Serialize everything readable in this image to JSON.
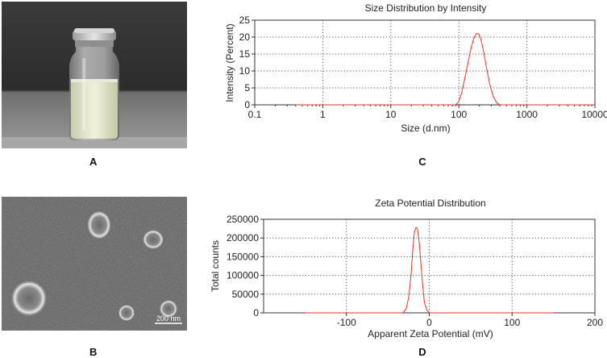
{
  "panels": {
    "a": "A",
    "b": "B",
    "c": "C",
    "d": "D"
  },
  "scale_bar": "200 nm",
  "colors": {
    "curve": "#e8322b",
    "axis": "#333333",
    "grid": "#555555"
  },
  "chart_data": [
    {
      "type": "line",
      "title": "Size Distribution by Intensity",
      "xlabel": "Size (d.nm)",
      "ylabel": "Intensity (Percent)",
      "xscale": "log",
      "xlim": [
        0.1,
        10000
      ],
      "ylim": [
        0,
        25
      ],
      "x_ticks": [
        0.1,
        1,
        10,
        100,
        1000,
        10000
      ],
      "x_tick_labels": [
        "0.1",
        "1",
        "10",
        "100",
        "1000",
        "10000"
      ],
      "y_ticks": [
        0,
        5,
        10,
        15,
        20,
        25
      ],
      "y_tick_labels": [
        "0",
        "5",
        "10",
        "15",
        "20",
        "25"
      ],
      "grid": true,
      "series": [
        {
          "x": [
            0.4,
            90,
            100,
            110,
            120,
            135,
            150,
            165,
            180,
            195,
            210,
            230,
            255,
            285,
            320,
            360,
            400,
            10000
          ],
          "y": [
            0,
            0,
            1.0,
            3.5,
            7.0,
            12.0,
            16.5,
            19.5,
            21.0,
            21.0,
            19.5,
            16.0,
            11.0,
            6.0,
            2.5,
            0.6,
            0,
            0
          ]
        }
      ]
    },
    {
      "type": "line",
      "title": "Zeta Potential Distribution",
      "xlabel": "Apparent Zeta Potential (mV)",
      "ylabel": "Total counts",
      "xlim": [
        -200,
        200
      ],
      "ylim": [
        0,
        250000
      ],
      "x_ticks": [
        -100,
        0,
        100,
        200
      ],
      "x_tick_labels": [
        "-100",
        "0",
        "100",
        "200"
      ],
      "y_ticks": [
        0,
        50000,
        100000,
        150000,
        200000,
        250000
      ],
      "y_tick_labels": [
        "0",
        "50000",
        "100000",
        "150000",
        "200000",
        "250000"
      ],
      "grid": true,
      "series": [
        {
          "x": [
            -150,
            -32,
            -28,
            -25,
            -22,
            -20,
            -18,
            -16,
            -15,
            -14,
            -12,
            -10,
            -8,
            -6,
            -3,
            0,
            150
          ],
          "y": [
            0,
            0,
            10000,
            40000,
            100000,
            165000,
            215000,
            228000,
            228000,
            220000,
            185000,
            130000,
            75000,
            30000,
            8000,
            0,
            0
          ]
        }
      ]
    }
  ]
}
